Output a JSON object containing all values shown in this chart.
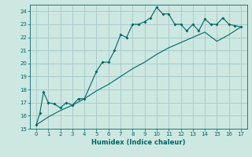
{
  "xlabel": "Humidex (Indice chaleur)",
  "bg_color": "#cce8e0",
  "line_color": "#006666",
  "grid_color": "#aacccc",
  "x_min": -0.5,
  "x_max": 17.5,
  "y_min": 15,
  "y_max": 24.5,
  "x_ticks": [
    0,
    1,
    2,
    3,
    4,
    5,
    6,
    7,
    8,
    9,
    10,
    11,
    12,
    13,
    14,
    15,
    16,
    17
  ],
  "y_ticks": [
    15,
    16,
    17,
    18,
    19,
    20,
    21,
    22,
    23,
    24
  ],
  "line1_x": [
    0,
    0.3,
    0.6,
    1.0,
    1.5,
    2.0,
    2.5,
    3.0,
    3.5,
    4.0,
    5.0,
    5.5,
    6.0,
    6.5,
    7.0,
    7.5,
    8.0,
    8.5,
    9.0,
    9.5,
    10.0,
    10.5,
    11.0,
    11.5,
    12.0,
    12.5,
    13.0,
    13.5,
    14.0,
    14.5,
    15.0,
    15.5,
    16.0,
    16.5,
    17.0
  ],
  "line1_y": [
    15.3,
    16.2,
    17.8,
    17.0,
    16.9,
    16.6,
    17.0,
    16.8,
    17.3,
    17.3,
    19.4,
    20.1,
    20.1,
    21.0,
    22.2,
    22.0,
    23.0,
    23.0,
    23.2,
    23.5,
    24.3,
    23.8,
    23.8,
    23.0,
    23.0,
    22.5,
    23.0,
    22.5,
    23.4,
    23.0,
    23.0,
    23.5,
    23.0,
    22.9,
    22.8
  ],
  "line2_x": [
    0,
    1,
    2,
    3,
    4,
    5,
    6,
    7,
    8,
    9,
    10,
    11,
    12,
    13,
    14,
    15,
    16,
    17
  ],
  "line2_y": [
    15.3,
    15.9,
    16.4,
    16.8,
    17.3,
    17.9,
    18.4,
    19.0,
    19.6,
    20.1,
    20.7,
    21.2,
    21.6,
    22.0,
    22.4,
    21.7,
    22.2,
    22.8
  ]
}
